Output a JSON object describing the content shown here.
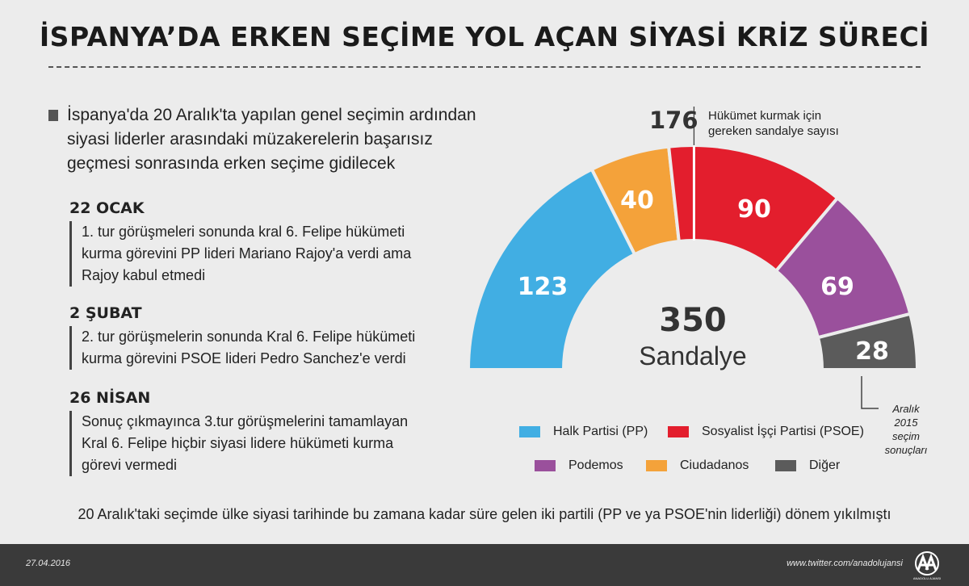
{
  "header": {
    "title": "İSPANYA’DA ERKEN SEÇİME YOL AÇAN SİYASİ KRİZ SÜRECİ"
  },
  "intro": "İspanya'da 20 Aralık'ta yapılan genel seçimin ardından siyasi liderler arasındaki müzakerelerin başarısız geçmesi sonrasında erken seçime gidilecek",
  "events": [
    {
      "date": "22 OCAK",
      "text": "1. tur görüşmeleri sonunda kral 6. Felipe hükümeti kurma görevini PP lideri Mariano Rajoy'a verdi ama Rajoy kabul etmedi"
    },
    {
      "date": "2 ŞUBAT",
      "text": "2. tur görüşmelerin sonunda Kral 6. Felipe hükümeti kurma görevini PSOE lideri Pedro Sanchez'e verdi"
    },
    {
      "date": "26 NİSAN",
      "text": "Sonuç çıkmayınca 3.tur görüşmelerini tamamlayan Kral 6. Felipe hiçbir siyasi lidere hükümeti kurma görevi vermedi"
    }
  ],
  "chart_data": {
    "type": "pie",
    "subtype": "semicircle-parliament",
    "total": 350,
    "total_unit": "Sandalye",
    "majority": 176,
    "majority_label": "Hükümet kurmak için gereken sandalye sayısı",
    "result_note": "Aralık 2015 seçim sonuçları",
    "slices": [
      {
        "name": "Halk Partisi (PP)",
        "value": 123,
        "color": "#41aee3"
      },
      {
        "name": "Ciudadanos",
        "value": 40,
        "color": "#f4a23a"
      },
      {
        "name": "Sosyalist İşçi Partisi (PSOE)",
        "value": 90,
        "color": "#e31e2d"
      },
      {
        "name": "Podemos",
        "value": 69,
        "color": "#9a509c"
      },
      {
        "name": "Diğer",
        "value": 28,
        "color": "#5b5b5b"
      }
    ]
  },
  "legend": [
    {
      "label": "Halk Partisi (PP)",
      "color": "#41aee3"
    },
    {
      "label": "Sosyalist İşçi Partisi (PSOE)",
      "color": "#e31e2d"
    },
    {
      "label": "Podemos",
      "color": "#9a509c"
    },
    {
      "label": "Ciudadanos",
      "color": "#f4a23a"
    },
    {
      "label": "Diğer",
      "color": "#5b5b5b"
    }
  ],
  "footer_note": "20 Aralık'taki seçimde ülke siyasi tarihinde bu zamana kadar süre gelen iki partili (PP ve ya PSOE'nin liderliği) dönem yıkılmıştı",
  "footer": {
    "date": "27.04.2016",
    "twitter": "www.twitter.com/anadolujansi",
    "logo_text": "ANADOLU AJANSI"
  }
}
